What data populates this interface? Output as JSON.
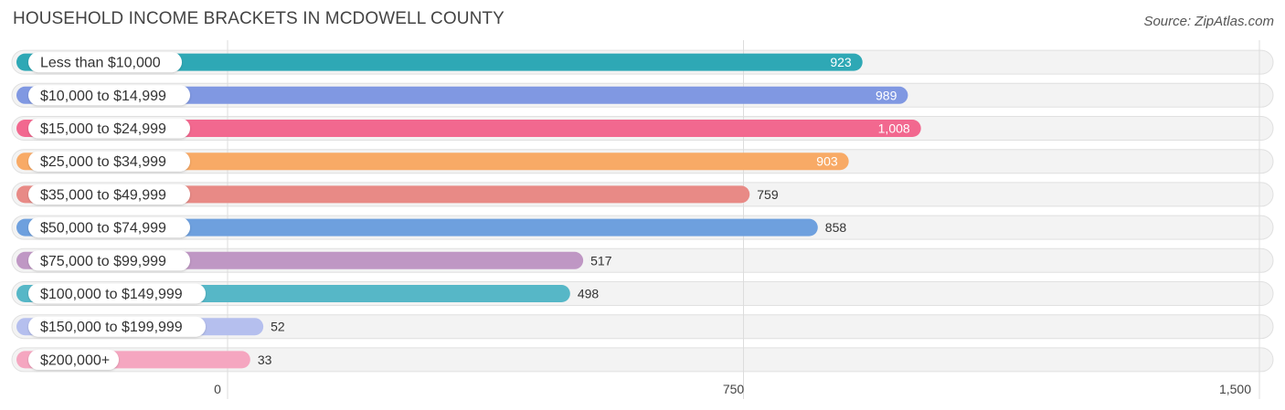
{
  "title": "HOUSEHOLD INCOME BRACKETS IN MCDOWELL COUNTY",
  "source": "Source: ZipAtlas.com",
  "chart_data": {
    "type": "bar",
    "orientation": "horizontal",
    "title": "HOUSEHOLD INCOME BRACKETS IN MCDOWELL COUNTY",
    "xlabel": "",
    "ylabel": "",
    "categories": [
      "Less than $10,000",
      "$10,000 to $14,999",
      "$15,000 to $24,999",
      "$25,000 to $34,999",
      "$35,000 to $49,999",
      "$50,000 to $74,999",
      "$75,000 to $99,999",
      "$100,000 to $149,999",
      "$150,000 to $199,999",
      "$200,000+"
    ],
    "values": [
      923,
      989,
      1008,
      903,
      759,
      858,
      517,
      498,
      52,
      33
    ],
    "value_labels": [
      "923",
      "989",
      "1,008",
      "903",
      "759",
      "858",
      "517",
      "498",
      "52",
      "33"
    ],
    "colors": [
      "#2ea8b5",
      "#8098e2",
      "#f2688f",
      "#f8aa66",
      "#e88a86",
      "#6ea0de",
      "#bf97c4",
      "#56b7c7",
      "#b5bfee",
      "#f5a6c0"
    ],
    "xlim": [
      0,
      1500
    ],
    "xticks": [
      0,
      750,
      1500
    ],
    "xtick_labels": [
      "0",
      "750",
      "1,500"
    ],
    "grid": true
  }
}
